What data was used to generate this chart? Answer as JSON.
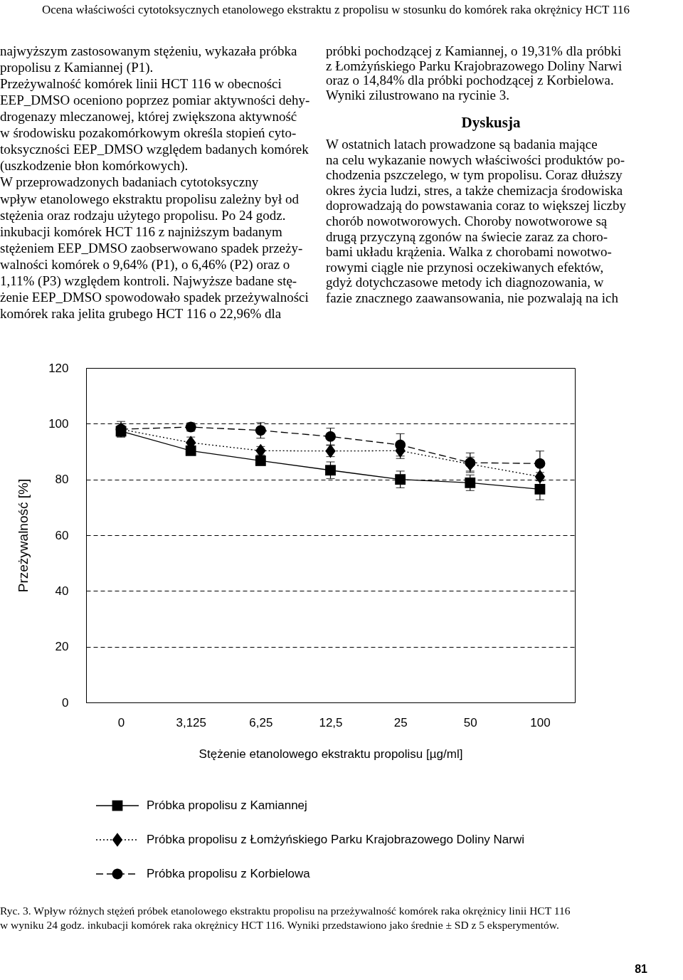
{
  "chart_data": [
    {
      "type": "other",
      "annotations": [
        "Ocena właściwości cytotoksycznych etanolowego ekstraktu z propolisu w stosunku do komórek raka okrężnicy HCT 116",
        "najwyższym zastosowanym stężeniu, wykazała próbka",
        "propolisu z Kamiannej (P1).",
        "Przeżywalność komórek linii HCT 116 w obecności",
        "EEP_DMSO oceniono poprzez pomiar aktywności dehy-",
        "drogenazy mleczanowej, której zwiększona aktywność",
        "w środowisku pozakomórkowym określa stopień cyto-",
        "toksyczności EEP_DMSO względem badanych komórek",
        "(uszkodzenie błon komórkowych).",
        "W przeprowadzonych badaniach cytotoksyczny",
        "wpływ etanolowego ekstraktu propolisu zależny był od",
        "stężenia oraz rodzaju użytego propolisu. Po 24 godz.",
        "inkubacji komórek HCT 116 z najniższym badanym",
        "stężeniem EEP_DMSO zaobserwowano spadek przeży-",
        "walności komórek o 9,64% (P1), o 6,46% (P2) oraz o",
        "1,11% (P3) względem kontroli. Najwyższe badane stę-",
        "żenie EEP_DMSO spowodowało spadek przeżywalności",
        "komórek raka jelita grubego HCT 116 o 22,96% dla",
        "próbki pochodzącej z Kamiannej, o 19,31% dla próbki",
        "z Łomżyńskiego Parku Krajobrazowego Doliny Narwi",
        "oraz o 14,84% dla próbki pochodzącej z Korbielowa.",
        "Wyniki zilustrowano na rycinie 3.",
        "Dyskusja",
        "W ostatnich latach prowadzone są badania mające",
        "na celu wykazanie nowych właściwości produktów po-",
        "chodzenia pszczelego, w tym propolisu. Coraz dłuższy",
        "okres życia ludzi, stres, a także chemizacja środowiska",
        "doprowadzają do powstawania coraz to większej liczby",
        "chorób nowotworowych. Choroby nowotworowe są",
        "drugą przyczyną zgonów na świecie zaraz za choro-",
        "bami układu krążenia. Walka z chorobami nowotwo-",
        "rowymi ciągle nie przynosi oczekiwanych efektów,",
        "gdyż dotychczasowe metody ich diagnozowania, w",
        "fazie znacznego zaawansowania, nie pozwalają na ich"
      ]
    },
    {
      "type": "line",
      "xlabel": "Stężenie etanolowego ekstraktu propolisu [µg/ml]",
      "ylabel": "Przeżywalność [%]",
      "categories": [
        "0",
        "3,125",
        "6,25",
        "12,5",
        "25",
        "50",
        "100"
      ],
      "ylim": [
        0,
        120
      ],
      "yticks": [
        0,
        20,
        40,
        60,
        80,
        100,
        120
      ],
      "grid": "y",
      "legend": "bottom",
      "series": [
        {
          "name": "Próbka propolisu z Kamiannej",
          "color": "#000000",
          "marker": "square",
          "line_style": "solid",
          "values": [
            97.3,
            90.3,
            86.7,
            83.3,
            80,
            78.8,
            76.5
          ],
          "errors": [
            2,
            1.5,
            1.5,
            3,
            3,
            2.8,
            3.8
          ]
        },
        {
          "name": "Próbka propolisu z Łomżyńskiego Parku Krajobrazowego Doliny Narwi",
          "color": "#000000",
          "marker": "diamond",
          "line_style": "dotted",
          "values": [
            98,
            93.2,
            90.3,
            90.2,
            90.3,
            85.5,
            81
          ],
          "errors": [
            2,
            2,
            1.5,
            2,
            2.8,
            2.5,
            1.5
          ]
        },
        {
          "name": "Próbka propolisu z Korbielowa",
          "color": "#000000",
          "marker": "circle",
          "line_style": "dashed",
          "values": [
            98,
            98.8,
            97.6,
            95.4,
            92.4,
            86,
            85.7
          ],
          "errors": [
            2.8,
            1.5,
            2.8,
            3,
            4,
            3.5,
            4.5
          ]
        }
      ]
    },
    {
      "type": "other",
      "annotations": [
        "Ryc. 3. Wpływ różnych stężeń próbek etanolowego ekstraktu propolisu na przeżywalność komórek raka okrężnicy linii HCT 116",
        "w wyniku 24 godz. inkubacji komórek raka okrężnicy HCT 116. Wyniki przedstawiono jako średnie ± SD z 5 eksperymentów.",
        "81"
      ]
    }
  ]
}
